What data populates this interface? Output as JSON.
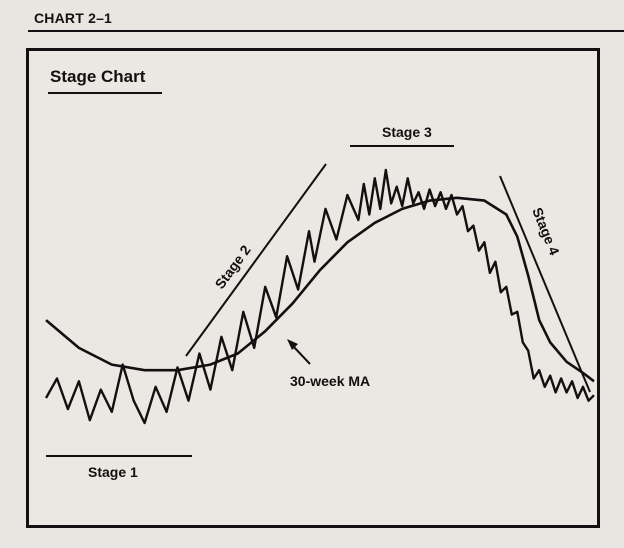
{
  "header": {
    "label": "CHART 2–1"
  },
  "chart_data": {
    "type": "line",
    "title": "Stage Chart",
    "x_range": [
      0,
      100
    ],
    "y_range": [
      0,
      100
    ],
    "grid": false,
    "series": [
      {
        "role": "price",
        "points": [
          [
            0,
            18
          ],
          [
            2,
            25
          ],
          [
            4,
            14
          ],
          [
            6,
            24
          ],
          [
            8,
            10
          ],
          [
            10,
            21
          ],
          [
            12,
            13
          ],
          [
            14,
            30
          ],
          [
            16,
            17
          ],
          [
            18,
            9
          ],
          [
            20,
            22
          ],
          [
            22,
            13
          ],
          [
            24,
            29
          ],
          [
            26,
            17
          ],
          [
            28,
            34
          ],
          [
            30,
            21
          ],
          [
            32,
            40
          ],
          [
            34,
            28
          ],
          [
            36,
            49
          ],
          [
            38,
            36
          ],
          [
            40,
            58
          ],
          [
            42,
            47
          ],
          [
            44,
            69
          ],
          [
            46,
            57
          ],
          [
            48,
            78
          ],
          [
            49,
            67
          ],
          [
            51,
            86
          ],
          [
            53,
            75
          ],
          [
            55,
            91
          ],
          [
            57,
            82
          ],
          [
            58,
            95
          ],
          [
            59,
            84
          ],
          [
            60,
            97
          ],
          [
            61,
            86
          ],
          [
            62,
            100
          ],
          [
            63,
            88
          ],
          [
            64,
            94
          ],
          [
            65,
            87
          ],
          [
            66,
            97
          ],
          [
            67,
            88
          ],
          [
            68,
            92
          ],
          [
            69,
            86
          ],
          [
            70,
            93
          ],
          [
            71,
            87
          ],
          [
            72,
            92
          ],
          [
            73,
            86
          ],
          [
            74,
            91
          ],
          [
            75,
            84
          ],
          [
            76,
            87
          ],
          [
            77,
            78
          ],
          [
            78,
            80
          ],
          [
            79,
            71
          ],
          [
            80,
            74
          ],
          [
            81,
            63
          ],
          [
            82,
            67
          ],
          [
            83,
            56
          ],
          [
            84,
            58
          ],
          [
            85,
            48
          ],
          [
            86,
            49
          ],
          [
            87,
            38
          ],
          [
            88,
            35
          ],
          [
            89,
            25
          ],
          [
            90,
            28
          ],
          [
            91,
            22
          ],
          [
            92,
            26
          ],
          [
            93,
            20
          ],
          [
            94,
            25
          ],
          [
            95,
            20
          ],
          [
            96,
            24
          ],
          [
            97,
            18
          ],
          [
            98,
            22
          ],
          [
            99,
            17
          ],
          [
            100,
            19
          ]
        ]
      },
      {
        "role": "moving-average",
        "label": "30-week MA",
        "points": [
          [
            0,
            46
          ],
          [
            6,
            36
          ],
          [
            12,
            30
          ],
          [
            18,
            28
          ],
          [
            24,
            28
          ],
          [
            30,
            30
          ],
          [
            35,
            34
          ],
          [
            40,
            42
          ],
          [
            45,
            52
          ],
          [
            50,
            64
          ],
          [
            55,
            74
          ],
          [
            60,
            81
          ],
          [
            65,
            86
          ],
          [
            70,
            89
          ],
          [
            75,
            90
          ],
          [
            80,
            89
          ],
          [
            84,
            84
          ],
          [
            86,
            76
          ],
          [
            88,
            62
          ],
          [
            90,
            46
          ],
          [
            92,
            38
          ],
          [
            95,
            31
          ],
          [
            98,
            27
          ],
          [
            100,
            24
          ]
        ]
      }
    ],
    "annotations": {
      "stage1": "Stage 1",
      "stage2": "Stage 2",
      "stage3": "Stage 3",
      "stage4": "Stage 4",
      "ma_label": "30-week MA"
    }
  }
}
